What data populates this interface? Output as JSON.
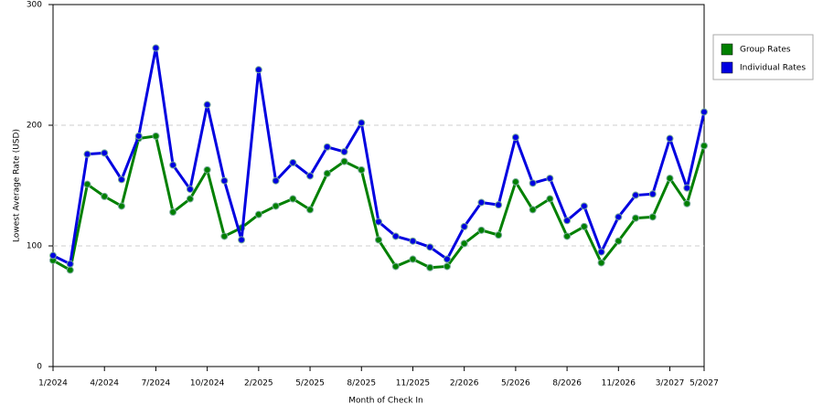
{
  "chart_data": {
    "type": "line",
    "x_label": "Month of Check In",
    "y_label": "Lowest Average Rate (USD)",
    "categories": [
      "1/2024",
      null,
      null,
      "4/2024",
      null,
      null,
      "7/2024",
      null,
      null,
      "10/2024",
      null,
      null,
      "2/2025",
      null,
      null,
      "5/2025",
      null,
      null,
      "8/2025",
      null,
      null,
      "11/2025",
      null,
      null,
      "2/2026",
      null,
      null,
      "5/2026",
      null,
      null,
      "8/2026",
      null,
      null,
      "11/2026",
      null,
      null,
      "3/2027",
      null,
      "5/2027"
    ],
    "series": [
      {
        "name": "Group Rates",
        "color": "#008000",
        "values": [
          88,
          80,
          151,
          141,
          133,
          189,
          191,
          128,
          139,
          163,
          108,
          115,
          126,
          133,
          139,
          130,
          160,
          170,
          163,
          105,
          83,
          89,
          82,
          83,
          102,
          113,
          109,
          153,
          130,
          139,
          108,
          116,
          86,
          104,
          123,
          124,
          156,
          135,
          183
        ]
      },
      {
        "name": "Individual Rates",
        "color": "#0000e0",
        "values": [
          92,
          85,
          176,
          177,
          155,
          191,
          264,
          167,
          147,
          217,
          154,
          105,
          246,
          154,
          169,
          158,
          182,
          178,
          202,
          120,
          108,
          104,
          99,
          89,
          116,
          136,
          134,
          190,
          152,
          156,
          121,
          133,
          95,
          124,
          142,
          143,
          189,
          148,
          211
        ]
      }
    ],
    "ylim": [
      0,
      300
    ],
    "yticks": [
      0,
      100,
      200,
      300
    ],
    "grid": true,
    "legend": "right"
  }
}
